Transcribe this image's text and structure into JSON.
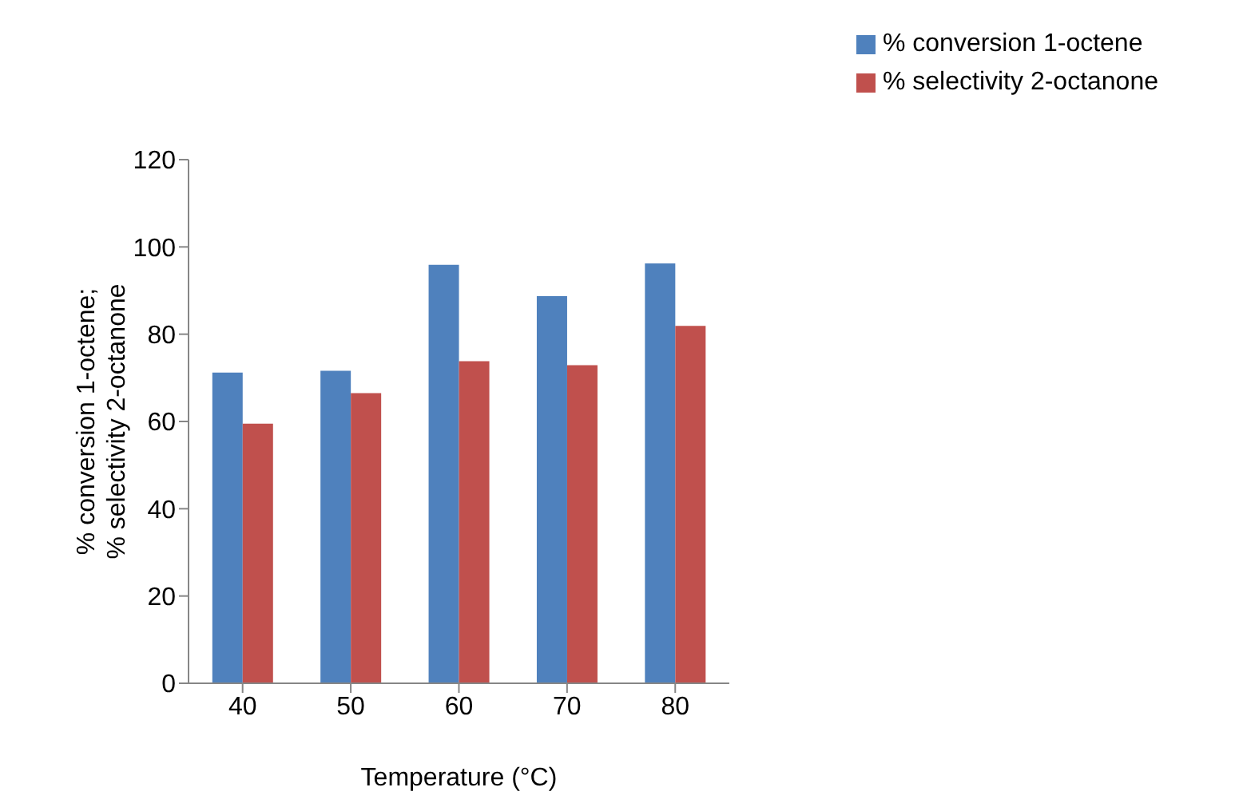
{
  "chart_data": {
    "type": "bar",
    "xlabel": "Temperature (°C)",
    "ylabel": "% conversion 1-octene;\n% selectivity 2-octanone",
    "categories": [
      "40",
      "50",
      "60",
      "70",
      "80"
    ],
    "series": [
      {
        "name": "% conversion 1-octene",
        "color": "#4f81bd",
        "values": [
          71.2,
          71.6,
          95.9,
          88.7,
          96.2
        ]
      },
      {
        "name": "% selectivity 2-octanone",
        "color": "#c0504d",
        "values": [
          59.5,
          66.5,
          73.8,
          72.9,
          81.9
        ]
      }
    ],
    "ylim": [
      0,
      120
    ],
    "yticks": [
      0,
      20,
      40,
      60,
      80,
      100,
      120
    ],
    "grid": false,
    "legend": "top right"
  }
}
